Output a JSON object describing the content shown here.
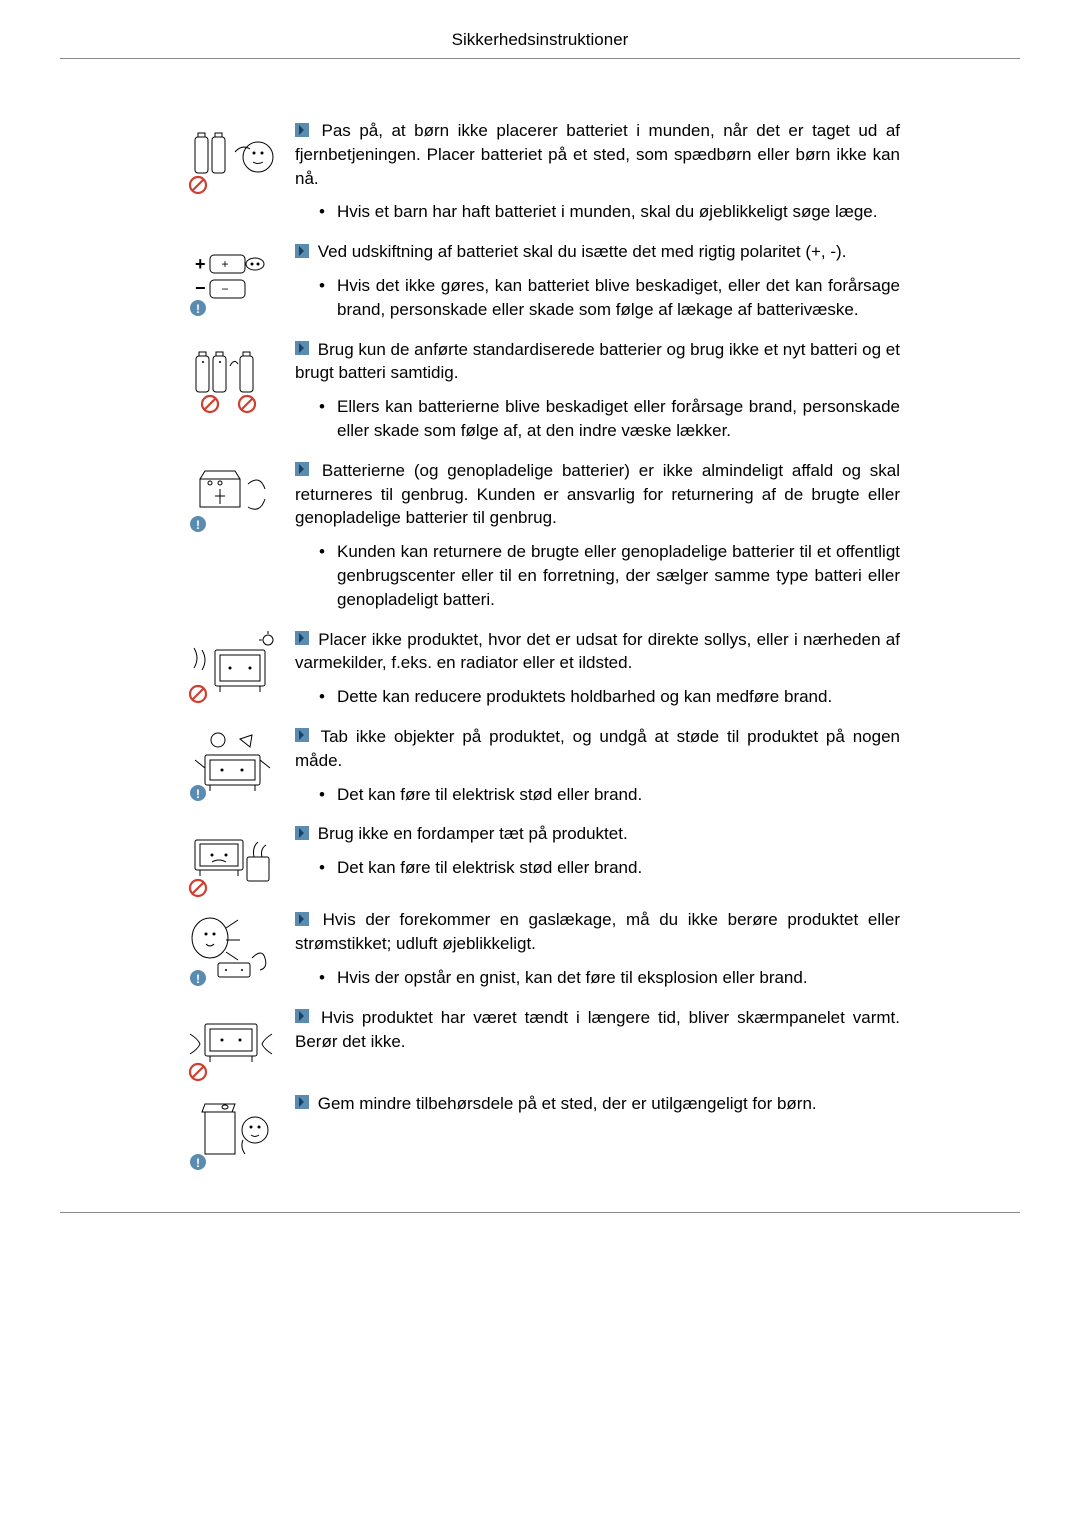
{
  "header": {
    "title": "Sikkerhedsinstruktioner"
  },
  "sections": [
    {
      "icon_type": "battery-child",
      "heading": "Pas på, at børn ikke placerer batteriet i munden, når det er taget ud af fjernbetjeningen. Placer batteriet på et sted, som spædbørn eller børn ikke kan nå.",
      "bullets": [
        "Hvis et barn har haft batteriet i munden, skal du øjeblikkeligt søge læge."
      ]
    },
    {
      "icon_type": "battery-polarity",
      "heading": "Ved udskiftning af batteriet skal du isætte det med rigtig polaritet (+, -).",
      "bullets": [
        "Hvis det ikke gøres, kan batteriet blive beskadiget, eller det kan forårsage brand, personskade eller skade som følge af lækage af batterivæske."
      ]
    },
    {
      "icon_type": "battery-mix",
      "heading": "Brug kun de anførte standardiserede batterier og brug ikke et nyt batteri og et brugt batteri samtidig.",
      "bullets": [
        "Ellers kan batterierne blive beskadiget eller forårsage brand, personskade eller skade som følge af, at den indre væske lækker."
      ]
    },
    {
      "icon_type": "battery-recycle",
      "heading": "Batterierne (og genopladelige batterier) er ikke almindeligt affald og skal returneres til genbrug. Kunden er ansvarlig for returnering af de brugte eller genopladelige batterier til genbrug.",
      "bullets": [
        "Kunden kan returnere de brugte eller genopladelige batterier til et offentligt genbrugscenter eller til en forretning, der sælger samme type batteri eller genopladeligt batteri."
      ]
    },
    {
      "icon_type": "sun-heat",
      "heading": "Placer ikke produktet, hvor det er udsat for direkte sollys, eller i nærheden af varmekilder, f.eks. en radiator eller et ildsted.",
      "bullets": [
        "Dette kan reducere produktets holdbarhed og kan medføre brand."
      ]
    },
    {
      "icon_type": "drop-impact",
      "heading": "Tab ikke objekter på produktet, og undgå at støde til produktet på nogen måde.",
      "bullets": [
        "Det kan føre til elektrisk stød eller brand."
      ]
    },
    {
      "icon_type": "humidifier",
      "heading": "Brug ikke en fordamper tæt på produktet.",
      "bullets": [
        "Det kan føre til elektrisk stød eller brand."
      ]
    },
    {
      "icon_type": "gas-leak",
      "heading": "Hvis der forekommer en gaslækage, må du ikke berøre produktet eller strømstikket; udluft øjeblikkeligt.",
      "bullets": [
        "Hvis der opstår en gnist, kan det føre til eksplosion eller brand."
      ]
    },
    {
      "icon_type": "hot-panel",
      "heading": "Hvis produktet har været tændt i længere tid, bliver skærmpanelet varmt. Berør det ikke.",
      "bullets": []
    },
    {
      "icon_type": "small-parts",
      "heading": "Gem mindre tilbehørsdele på et sted, der er utilgængeligt for børn.",
      "bullets": []
    }
  ]
}
